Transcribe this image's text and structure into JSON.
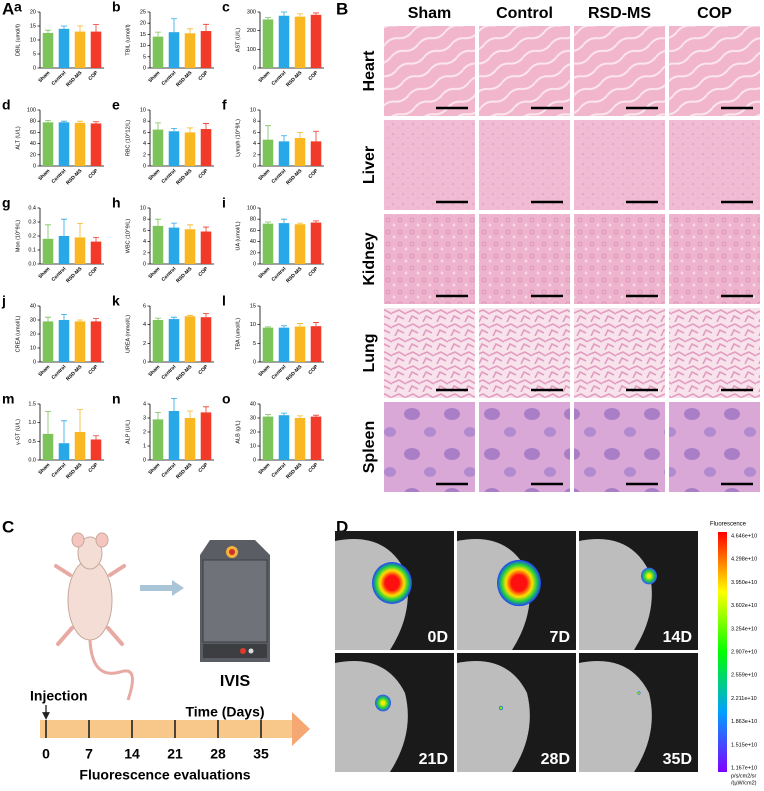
{
  "panels": {
    "A": "A",
    "B": "B",
    "C": "C",
    "D": "D"
  },
  "chart_data": [
    {
      "type": "bar",
      "panel_label": "a",
      "ylabel": "DBIL (umol/l)",
      "categories": [
        "Sham",
        "Control",
        "RSD-MS",
        "COP"
      ],
      "values": [
        12.5,
        14,
        13,
        13
      ],
      "errors": [
        1,
        1,
        2,
        2.5
      ],
      "colors": [
        "#7cc35a",
        "#29a8e8",
        "#f9b822",
        "#f23a2a"
      ],
      "ylim": [
        0,
        20
      ],
      "yticks": [
        0,
        5,
        10,
        15,
        20
      ]
    },
    {
      "type": "bar",
      "panel_label": "b",
      "ylabel": "TBIL (umol/l)",
      "categories": [
        "Sham",
        "Control",
        "RSD-MS",
        "COP"
      ],
      "values": [
        14,
        16,
        15.5,
        16.5
      ],
      "errors": [
        2,
        6,
        2,
        3
      ],
      "colors": [
        "#7cc35a",
        "#29a8e8",
        "#f9b822",
        "#f23a2a"
      ],
      "ylim": [
        0,
        25
      ],
      "yticks": [
        0,
        5,
        10,
        15,
        20,
        25
      ]
    },
    {
      "type": "bar",
      "panel_label": "c",
      "ylabel": "AST (U/L)",
      "categories": [
        "Sham",
        "Control",
        "RSD-MS",
        "COP"
      ],
      "values": [
        260,
        280,
        275,
        285
      ],
      "errors": [
        10,
        20,
        15,
        10
      ],
      "colors": [
        "#7cc35a",
        "#29a8e8",
        "#f9b822",
        "#f23a2a"
      ],
      "ylim": [
        0,
        300
      ],
      "yticks": [
        0,
        100,
        200,
        300
      ]
    },
    {
      "type": "bar",
      "panel_label": "d",
      "ylabel": "ALT (U/L)",
      "categories": [
        "Sham",
        "Control",
        "RSD-MS",
        "COP"
      ],
      "values": [
        78,
        78,
        77,
        76
      ],
      "errors": [
        3,
        2,
        3,
        3
      ],
      "colors": [
        "#7cc35a",
        "#29a8e8",
        "#f9b822",
        "#f23a2a"
      ],
      "ylim": [
        0,
        100
      ],
      "yticks": [
        0,
        20,
        40,
        60,
        80,
        100
      ]
    },
    {
      "type": "bar",
      "panel_label": "e",
      "ylabel": "RBC (10^12/L)",
      "categories": [
        "Sham",
        "Control",
        "RSD-MS",
        "COP"
      ],
      "values": [
        6.5,
        6.2,
        6.0,
        6.6
      ],
      "errors": [
        1.2,
        0.5,
        0.8,
        1
      ],
      "colors": [
        "#7cc35a",
        "#29a8e8",
        "#f9b822",
        "#f23a2a"
      ],
      "ylim": [
        0,
        10
      ],
      "yticks": [
        0,
        2,
        4,
        6,
        8,
        10
      ]
    },
    {
      "type": "bar",
      "panel_label": "f",
      "ylabel": "Lymph (10^9/L)",
      "categories": [
        "Sham",
        "Control",
        "RSD-MS",
        "COP"
      ],
      "values": [
        4.7,
        4.4,
        5.0,
        4.4
      ],
      "errors": [
        2.5,
        1,
        1,
        1.8
      ],
      "colors": [
        "#7cc35a",
        "#29a8e8",
        "#f9b822",
        "#f23a2a"
      ],
      "ylim": [
        0,
        10
      ],
      "yticks": [
        0,
        2,
        4,
        6,
        8,
        10
      ]
    },
    {
      "type": "bar",
      "panel_label": "g",
      "ylabel": "Mon (10^9/L)",
      "categories": [
        "Sham",
        "Control",
        "RSD-MS",
        "COP"
      ],
      "values": [
        0.18,
        0.2,
        0.19,
        0.16
      ],
      "errors": [
        0.1,
        0.12,
        0.1,
        0.03
      ],
      "colors": [
        "#7cc35a",
        "#29a8e8",
        "#f9b822",
        "#f23a2a"
      ],
      "ylim": [
        0,
        0.4
      ],
      "yticks": [
        {
          "value": 0,
          "label": "0.0"
        },
        0.1,
        0.2,
        0.3,
        0.4
      ]
    },
    {
      "type": "bar",
      "panel_label": "h",
      "ylabel": "WBC (10^9/L)",
      "categories": [
        "Sham",
        "Control",
        "RSD-MS",
        "COP"
      ],
      "values": [
        6.8,
        6.5,
        6.2,
        5.8
      ],
      "errors": [
        1.2,
        0.8,
        0.8,
        0.8
      ],
      "colors": [
        "#7cc35a",
        "#29a8e8",
        "#f9b822",
        "#f23a2a"
      ],
      "ylim": [
        0,
        10
      ],
      "yticks": [
        0,
        2,
        4,
        6,
        8,
        10
      ]
    },
    {
      "type": "bar",
      "panel_label": "i",
      "ylabel": "UA (umol/L)",
      "categories": [
        "Sham",
        "Control",
        "RSD-MS",
        "COP"
      ],
      "values": [
        72,
        73,
        71,
        74
      ],
      "errors": [
        3,
        7,
        2,
        3
      ],
      "colors": [
        "#7cc35a",
        "#29a8e8",
        "#f9b822",
        "#f23a2a"
      ],
      "ylim": [
        0,
        100
      ],
      "yticks": [
        0,
        20,
        40,
        60,
        80,
        100
      ]
    },
    {
      "type": "bar",
      "panel_label": "j",
      "ylabel": "CREA (umol/L)",
      "categories": [
        "Sham",
        "Control",
        "RSD-MS",
        "COP"
      ],
      "values": [
        29,
        30,
        29,
        29
      ],
      "errors": [
        3,
        4,
        1,
        2
      ],
      "colors": [
        "#7cc35a",
        "#29a8e8",
        "#f9b822",
        "#f23a2a"
      ],
      "ylim": [
        0,
        40
      ],
      "yticks": [
        0,
        10,
        20,
        30,
        40
      ]
    },
    {
      "type": "bar",
      "panel_label": "k",
      "ylabel": "UREA (mmol/L)",
      "categories": [
        "Sham",
        "Control",
        "RSD-MS",
        "COP"
      ],
      "values": [
        4.5,
        4.6,
        4.9,
        4.8
      ],
      "errors": [
        0.2,
        0.2,
        0.1,
        0.4
      ],
      "colors": [
        "#7cc35a",
        "#29a8e8",
        "#f9b822",
        "#f23a2a"
      ],
      "ylim": [
        0,
        6
      ],
      "yticks": [
        0,
        2,
        4,
        6
      ]
    },
    {
      "type": "bar",
      "panel_label": "l",
      "ylabel": "TBA (umol/L)",
      "categories": [
        "Sham",
        "Control",
        "RSD-MS",
        "COP"
      ],
      "values": [
        9.2,
        9.2,
        9.5,
        9.6
      ],
      "errors": [
        0.2,
        0.5,
        0.8,
        1
      ],
      "colors": [
        "#7cc35a",
        "#29a8e8",
        "#f9b822",
        "#f23a2a"
      ],
      "ylim": [
        0,
        15
      ],
      "yticks": [
        0,
        5,
        10,
        15
      ]
    },
    {
      "type": "bar",
      "panel_label": "m",
      "ylabel": "γ-GT (U/L)",
      "categories": [
        "Sham",
        "Control",
        "RSD-MS",
        "COP"
      ],
      "values": [
        0.7,
        0.45,
        0.75,
        0.55
      ],
      "errors": [
        0.6,
        0.6,
        0.6,
        0.1
      ],
      "colors": [
        "#7cc35a",
        "#29a8e8",
        "#f9b822",
        "#f23a2a"
      ],
      "ylim": [
        0,
        1.5
      ],
      "yticks": [
        {
          "value": 0,
          "label": "0.0"
        },
        0.5,
        {
          "value": 1,
          "label": "1.0"
        },
        1.5
      ]
    },
    {
      "type": "bar",
      "panel_label": "n",
      "ylabel": "ALP (U/L)",
      "categories": [
        "Sham",
        "Control",
        "RSD-MS",
        "COP"
      ],
      "values": [
        2.9,
        3.5,
        3.0,
        3.4
      ],
      "errors": [
        0.5,
        0.9,
        0.5,
        0.4
      ],
      "colors": [
        "#7cc35a",
        "#29a8e8",
        "#f9b822",
        "#f23a2a"
      ],
      "ylim": [
        0,
        4
      ],
      "yticks": [
        0,
        1,
        2,
        3,
        4
      ]
    },
    {
      "type": "bar",
      "panel_label": "o",
      "ylabel": "ALB (g/L)",
      "categories": [
        "Sham",
        "Control",
        "RSD-MS",
        "COP"
      ],
      "values": [
        31,
        32,
        30,
        31
      ],
      "errors": [
        1.5,
        1.5,
        1.5,
        1
      ],
      "colors": [
        "#7cc35a",
        "#29a8e8",
        "#f9b822",
        "#f23a2a"
      ],
      "ylim": [
        0,
        40
      ],
      "yticks": [
        0,
        10,
        20,
        30,
        40
      ]
    }
  ],
  "histology": {
    "columns": [
      "Sham",
      "Control",
      "RSD-MS",
      "COP"
    ],
    "rows": [
      "Heart",
      "Liver",
      "Kidney",
      "Lung",
      "Spleen"
    ]
  },
  "ivis": {
    "instrument": "IVIS",
    "timeline": {
      "start_label": "Injection",
      "axis_label": "Time (Days)",
      "days": [
        0,
        7,
        14,
        21,
        28,
        35
      ],
      "caption": "Fluorescence evaluations"
    }
  },
  "imaging": {
    "timepoints": [
      "0D",
      "7D",
      "14D",
      "21D",
      "28D",
      "35D"
    ],
    "colorbar": {
      "title": "Fluorescence",
      "labels": [
        "4.646e+10",
        "4.298e+10",
        "3.950e+10",
        "3.602e+10",
        "3.254e+10",
        "2.907e+10",
        "2.559e+10",
        "2.211e+10",
        "1.863e+10",
        "1.515e+10",
        "1.167e+10"
      ],
      "units": [
        "p/s/cm2/sr",
        "/(µW/cm2)"
      ]
    }
  }
}
